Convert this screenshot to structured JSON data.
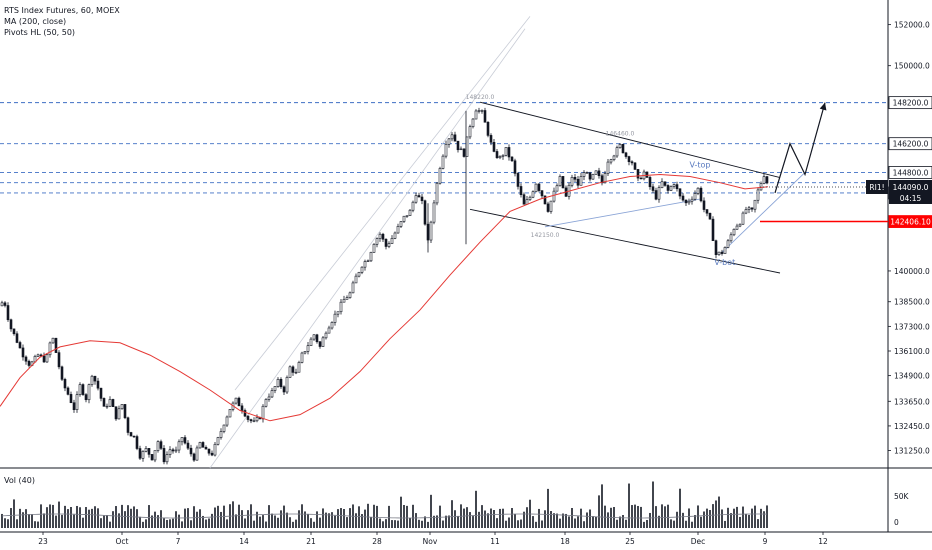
{
  "legend": {
    "symbol_line": "RTS Index Futures, 60, MOEX",
    "ma_line": "MA (200, close)",
    "pivots_line": "Pivots HL (50, 50)"
  },
  "volume_panel": {
    "label": "Vol (40)"
  },
  "colors": {
    "up": "#131722",
    "down": "#131722",
    "ma": "#e53935",
    "level_line": "#3f6fc4",
    "support_line": "#ff0000",
    "badge_bg": "#131722",
    "support_badge_bg": "#ff0000"
  },
  "chart_data": {
    "type": "candlestick",
    "title": "RTS Index Futures, 60, MOEX",
    "ylim": [
      130400,
      153200
    ],
    "y_ticks": [
      152000,
      150000,
      148200,
      146200,
      144800,
      143800,
      142406.1,
      140000,
      138500,
      137300,
      136100,
      134900,
      133650,
      132450,
      131250
    ],
    "y_tick_labels": [
      "152000.0",
      "150000.0",
      "148200.0",
      "146200.0",
      "144800.0",
      "143800.0",
      "142406.10",
      "140000.0",
      "138500.0",
      "137300.0",
      "136100.0",
      "134900.0",
      "133650.0",
      "132450.0",
      "131250.0"
    ],
    "x_tick_labels": [
      "23",
      "Oct",
      "7",
      "14",
      "21",
      "28",
      "Nov",
      "11",
      "18",
      "25",
      "Dec",
      "9",
      "12"
    ],
    "price_path": [
      [
        0,
        138300
      ],
      [
        4,
        138600
      ],
      [
        10,
        137300
      ],
      [
        16,
        136700
      ],
      [
        22,
        136000
      ],
      [
        30,
        135400
      ],
      [
        38,
        135900
      ],
      [
        46,
        135600
      ],
      [
        52,
        136900
      ],
      [
        58,
        135600
      ],
      [
        62,
        134600
      ],
      [
        68,
        134000
      ],
      [
        74,
        133300
      ],
      [
        80,
        134400
      ],
      [
        86,
        133800
      ],
      [
        92,
        135000
      ],
      [
        98,
        134300
      ],
      [
        104,
        133300
      ],
      [
        110,
        133700
      ],
      [
        116,
        132900
      ],
      [
        122,
        133500
      ],
      [
        128,
        132200
      ],
      [
        134,
        131900
      ],
      [
        140,
        131000
      ],
      [
        146,
        131300
      ],
      [
        152,
        130900
      ],
      [
        158,
        131700
      ],
      [
        164,
        130800
      ],
      [
        170,
        131300
      ],
      [
        176,
        131200
      ],
      [
        182,
        131900
      ],
      [
        188,
        131300
      ],
      [
        194,
        130900
      ],
      [
        200,
        131600
      ],
      [
        206,
        131200
      ],
      [
        212,
        131100
      ],
      [
        218,
        131800
      ],
      [
        224,
        132600
      ],
      [
        230,
        133300
      ],
      [
        236,
        133700
      ],
      [
        242,
        133300
      ],
      [
        248,
        132800
      ],
      [
        254,
        132600
      ],
      [
        260,
        132900
      ],
      [
        266,
        133800
      ],
      [
        272,
        134100
      ],
      [
        278,
        134600
      ],
      [
        284,
        134200
      ],
      [
        290,
        135300
      ],
      [
        296,
        135000
      ],
      [
        302,
        135900
      ],
      [
        308,
        136400
      ],
      [
        314,
        136900
      ],
      [
        320,
        136300
      ],
      [
        326,
        137100
      ],
      [
        332,
        137600
      ],
      [
        338,
        138100
      ],
      [
        344,
        138600
      ],
      [
        350,
        138900
      ],
      [
        356,
        139700
      ],
      [
        362,
        140300
      ],
      [
        368,
        140600
      ],
      [
        374,
        141400
      ],
      [
        380,
        141800
      ],
      [
        386,
        141200
      ],
      [
        392,
        141600
      ],
      [
        398,
        142100
      ],
      [
        404,
        142600
      ],
      [
        410,
        142900
      ],
      [
        416,
        143800
      ],
      [
        422,
        143300
      ],
      [
        428,
        141400
      ],
      [
        434,
        143400
      ],
      [
        440,
        145100
      ],
      [
        446,
        146300
      ],
      [
        452,
        146700
      ],
      [
        458,
        146000
      ],
      [
        464,
        145700
      ],
      [
        470,
        147100
      ],
      [
        476,
        147900
      ],
      [
        482,
        147700
      ],
      [
        488,
        146700
      ],
      [
        494,
        145700
      ],
      [
        500,
        145500
      ],
      [
        506,
        145900
      ],
      [
        512,
        145300
      ],
      [
        518,
        144100
      ],
      [
        524,
        143200
      ],
      [
        530,
        143600
      ],
      [
        536,
        144300
      ],
      [
        542,
        143700
      ],
      [
        548,
        143000
      ],
      [
        554,
        143800
      ],
      [
        560,
        144500
      ],
      [
        566,
        143600
      ],
      [
        572,
        144600
      ],
      [
        578,
        144200
      ],
      [
        584,
        144900
      ],
      [
        590,
        144400
      ],
      [
        596,
        144800
      ],
      [
        602,
        144300
      ],
      [
        608,
        145400
      ],
      [
        614,
        145700
      ],
      [
        620,
        146100
      ],
      [
        626,
        145600
      ],
      [
        632,
        145300
      ],
      [
        638,
        144400
      ],
      [
        644,
        144800
      ],
      [
        650,
        144100
      ],
      [
        656,
        143600
      ],
      [
        662,
        144300
      ],
      [
        668,
        143900
      ],
      [
        674,
        144300
      ],
      [
        680,
        143600
      ],
      [
        686,
        143300
      ],
      [
        692,
        143600
      ],
      [
        698,
        144000
      ],
      [
        704,
        143000
      ],
      [
        710,
        142400
      ],
      [
        716,
        140800
      ],
      [
        722,
        140900
      ],
      [
        728,
        141400
      ],
      [
        734,
        142100
      ],
      [
        740,
        142400
      ],
      [
        746,
        143000
      ],
      [
        752,
        142900
      ],
      [
        758,
        143900
      ],
      [
        764,
        144700
      ],
      [
        768,
        144200
      ]
    ],
    "ma_path": [
      [
        0,
        133400
      ],
      [
        20,
        134800
      ],
      [
        40,
        135800
      ],
      [
        60,
        136300
      ],
      [
        90,
        136600
      ],
      [
        120,
        136500
      ],
      [
        150,
        135900
      ],
      [
        180,
        135100
      ],
      [
        210,
        134200
      ],
      [
        240,
        133200
      ],
      [
        270,
        132700
      ],
      [
        300,
        133000
      ],
      [
        330,
        133800
      ],
      [
        360,
        135100
      ],
      [
        390,
        136700
      ],
      [
        420,
        138100
      ],
      [
        450,
        139800
      ],
      [
        480,
        141400
      ],
      [
        510,
        142900
      ],
      [
        540,
        143500
      ],
      [
        570,
        143900
      ],
      [
        600,
        144300
      ],
      [
        630,
        144600
      ],
      [
        660,
        144700
      ],
      [
        690,
        144600
      ],
      [
        720,
        144300
      ],
      [
        745,
        144000
      ],
      [
        768,
        144100
      ]
    ],
    "horizontal_levels": [
      {
        "value": 148200,
        "label": "148200.0",
        "style": "dashed"
      },
      {
        "value": 146200,
        "label": "146200.0",
        "style": "dashed"
      },
      {
        "value": 144800,
        "label": "144800.0",
        "style": "dashed"
      },
      {
        "value": 144300,
        "label": "",
        "style": "dashed"
      },
      {
        "value": 143800,
        "label": "143800.0",
        "style": "dashed"
      },
      {
        "value": 142406.1,
        "label": "142406.10",
        "style": "solid-red"
      }
    ],
    "current_price": {
      "symbol": "RI1!",
      "value": "144090.0",
      "countdown": "04:15"
    },
    "pivots": [
      {
        "text": "148220.0",
        "x": 480,
        "y": 148220
      },
      {
        "text": "146460.0",
        "x": 620,
        "y": 146460
      },
      {
        "text": "142150.0",
        "x": 545,
        "y": 142150
      }
    ],
    "annotations": [
      {
        "text": "V-top",
        "x": 700,
        "y": 145050
      },
      {
        "text": "V-bot.",
        "x": 726,
        "y": 140300
      }
    ],
    "channel": {
      "upper": [
        [
          480,
          148220
        ],
        [
          780,
          144550
        ]
      ],
      "lower": [
        [
          470,
          143000
        ],
        [
          780,
          139900
        ]
      ]
    },
    "ascending_channel": {
      "lower": [
        [
          210,
          130400
        ],
        [
          525,
          151800
        ]
      ],
      "upper": [
        [
          235,
          134200
        ],
        [
          530,
          152400
        ]
      ]
    },
    "projection_path": [
      [
        775,
        143800
      ],
      [
        790,
        146200
      ],
      [
        805,
        144700
      ],
      [
        825,
        148200
      ]
    ],
    "volume": {
      "label": "Vol (40)",
      "y_ticks": [
        "50K",
        "0"
      ]
    }
  }
}
